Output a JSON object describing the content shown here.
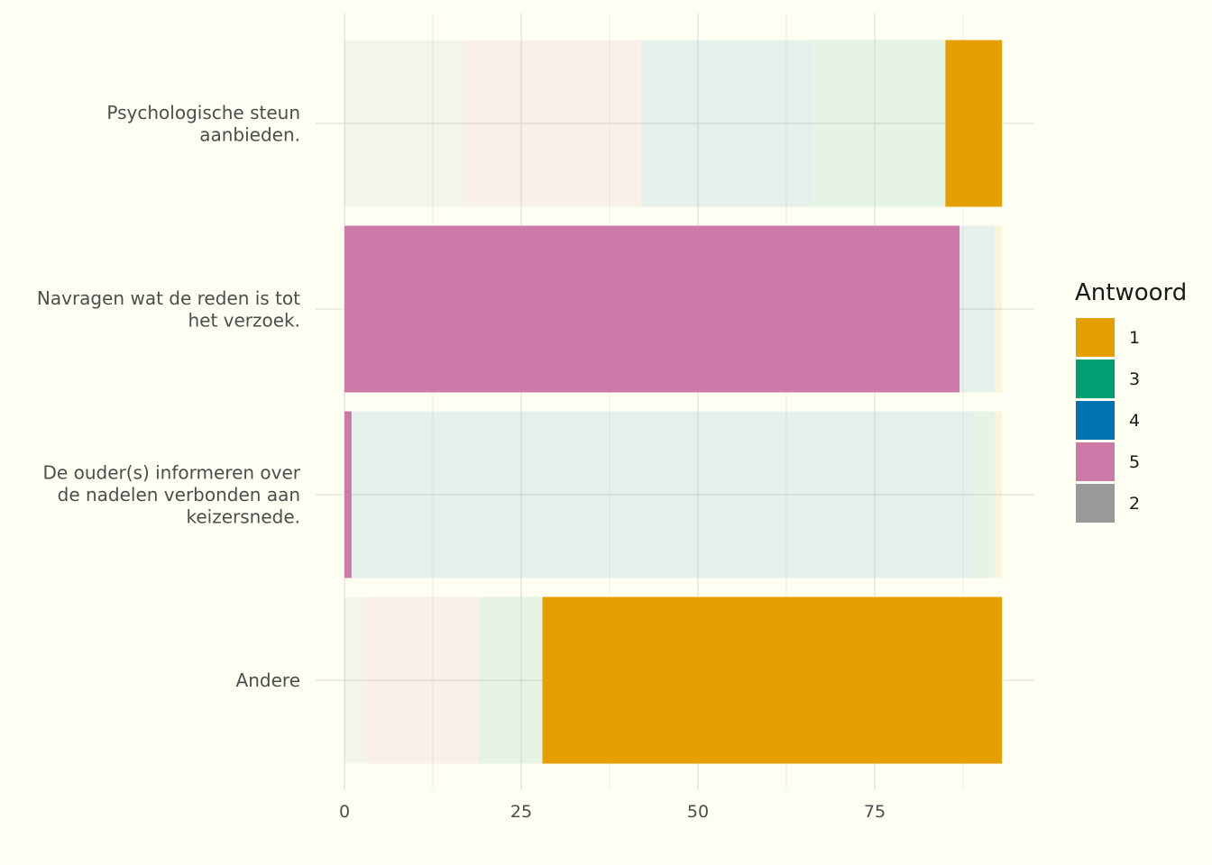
{
  "chart_data": {
    "type": "bar",
    "orientation": "horizontal",
    "stacked": true,
    "categories": [
      [
        "Psychologische steun",
        "aanbieden."
      ],
      [
        "Navragen wat de reden is tot",
        "het verzoek."
      ],
      [
        "De ouder(s) informeren over",
        "de nadelen verbonden aan",
        "keizersnede."
      ],
      [
        "Andere"
      ]
    ],
    "series": [
      {
        "name": "2",
        "color": "#999999",
        "values": [
          17,
          0,
          0,
          3
        ]
      },
      {
        "name": "5",
        "color": "#cc79a7",
        "values": [
          25,
          87,
          1,
          16
        ]
      },
      {
        "name": "4",
        "color": "#0072b2",
        "values": [
          24,
          5,
          88,
          0
        ]
      },
      {
        "name": "3",
        "color": "#009e73",
        "values": [
          19,
          0,
          3,
          9
        ]
      },
      {
        "name": "1",
        "color": "#e69f00",
        "values": [
          8,
          1,
          1,
          65
        ]
      }
    ],
    "highlight": [
      {
        "category": 0,
        "series": "1"
      },
      {
        "category": 1,
        "series": "5"
      },
      {
        "category": 2,
        "series": "5"
      },
      {
        "category": 3,
        "series": "1"
      }
    ],
    "x_ticks": [
      "0",
      "25",
      "50",
      "75"
    ],
    "x_tick_values": [
      0,
      25,
      50,
      75
    ],
    "xlim": [
      0,
      98
    ],
    "legend": {
      "title": "Antwoord",
      "position": "right",
      "entries": [
        {
          "label": "1",
          "color": "#e69f00"
        },
        {
          "label": "3",
          "color": "#009e73"
        },
        {
          "label": "4",
          "color": "#0072b2"
        },
        {
          "label": "5",
          "color": "#cc79a7"
        },
        {
          "label": "2",
          "color": "#999999"
        }
      ]
    },
    "grid": true
  }
}
